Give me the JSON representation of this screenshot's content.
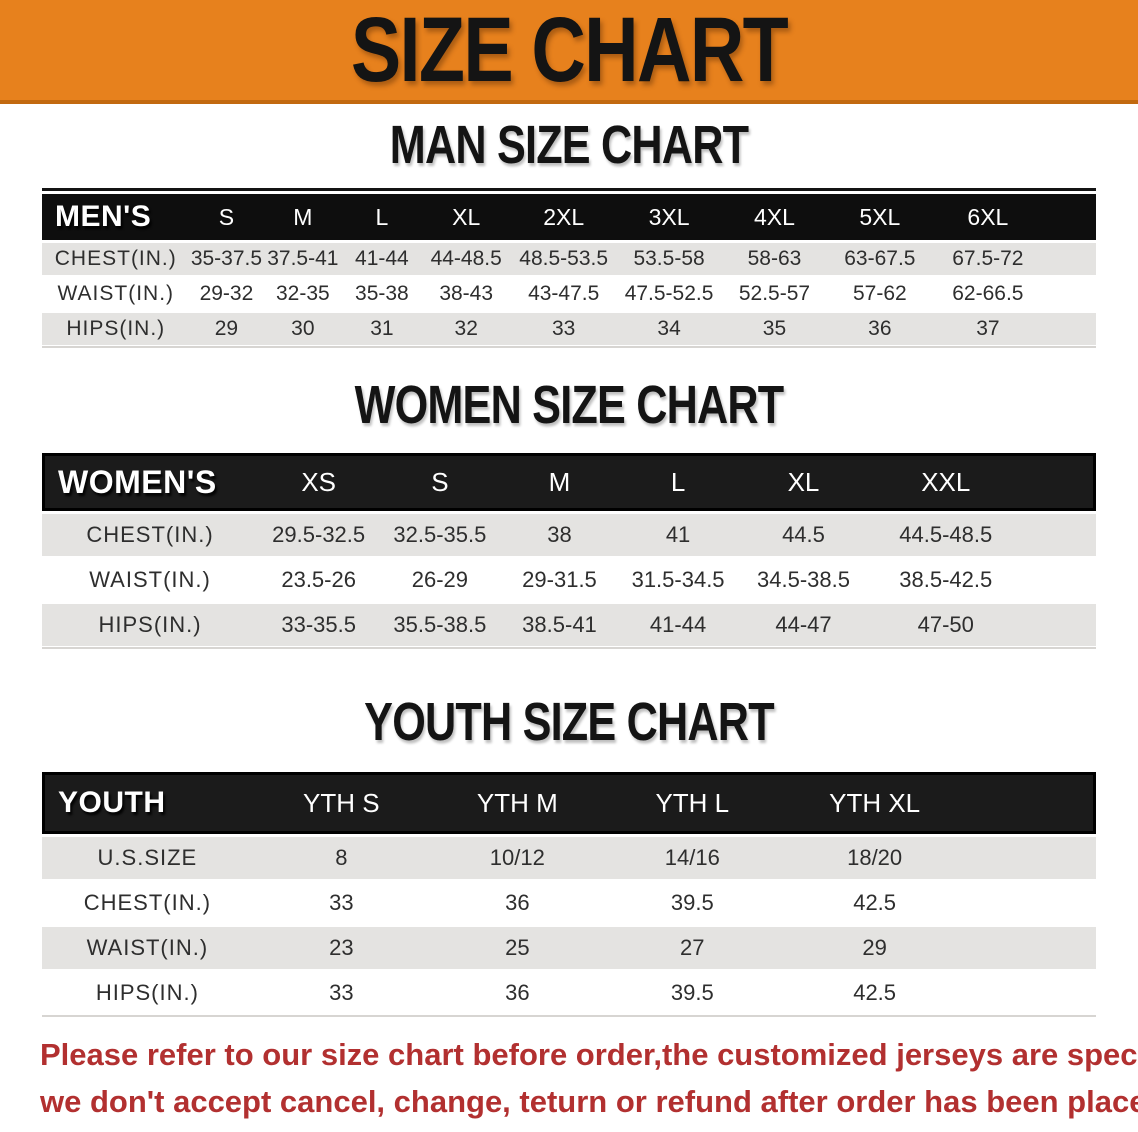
{
  "banner": {
    "title": "SIZE CHART",
    "bg_color": "#e7811d"
  },
  "sections": [
    {
      "title": "MAN SIZE CHART",
      "header_label": "MEN'S",
      "sizes": [
        "S",
        "M",
        "L",
        "XL",
        "2XL",
        "3XL",
        "4XL",
        "5XL",
        "6XL"
      ],
      "rows": [
        {
          "label": "CHEST(IN.)",
          "values": [
            "35-37.5",
            "37.5-41",
            "41-44",
            "44-48.5",
            "48.5-53.5",
            "53.5-58",
            "58-63",
            "63-67.5",
            "67.5-72"
          ]
        },
        {
          "label": "WAIST(IN.)",
          "values": [
            "29-32",
            "32-35",
            "35-38",
            "38-43",
            "43-47.5",
            "47.5-52.5",
            "52.5-57",
            "57-62",
            "62-66.5"
          ]
        },
        {
          "label": "HIPS(IN.)",
          "values": [
            "29",
            "30",
            "31",
            "32",
            "33",
            "34",
            "35",
            "36",
            "37"
          ]
        }
      ]
    },
    {
      "title": "WOMEN SIZE CHART",
      "header_label": "WOMEN'S",
      "sizes": [
        "XS",
        "S",
        "M",
        "L",
        "XL",
        "XXL"
      ],
      "rows": [
        {
          "label": "CHEST(IN.)",
          "values": [
            "29.5-32.5",
            "32.5-35.5",
            "38",
            "41",
            "44.5",
            "44.5-48.5"
          ]
        },
        {
          "label": "WAIST(IN.)",
          "values": [
            "23.5-26",
            "26-29",
            "29-31.5",
            "31.5-34.5",
            "34.5-38.5",
            "38.5-42.5"
          ]
        },
        {
          "label": "HIPS(IN.)",
          "values": [
            "33-35.5",
            "35.5-38.5",
            "38.5-41",
            "41-44",
            "44-47",
            "47-50"
          ]
        }
      ]
    },
    {
      "title": "YOUTH SIZE CHART",
      "header_label": "YOUTH",
      "sizes": [
        "YTH S",
        "YTH M",
        "YTH L",
        "YTH XL"
      ],
      "rows": [
        {
          "label": "U.S.SIZE",
          "values": [
            "8",
            "10/12",
            "14/16",
            "18/20"
          ]
        },
        {
          "label": "CHEST(IN.)",
          "values": [
            "33",
            "36",
            "39.5",
            "42.5"
          ]
        },
        {
          "label": "WAIST(IN.)",
          "values": [
            "23",
            "25",
            "27",
            "29"
          ]
        },
        {
          "label": "HIPS(IN.)",
          "values": [
            "33",
            "36",
            "39.5",
            "42.5"
          ]
        }
      ]
    }
  ],
  "footer": {
    "line1": "Please refer to our size chart before order,the customized jerseys are special products,",
    "line2": "we don't accept cancel, change, teturn or refund after order has been placed!",
    "color": "#b23030"
  }
}
